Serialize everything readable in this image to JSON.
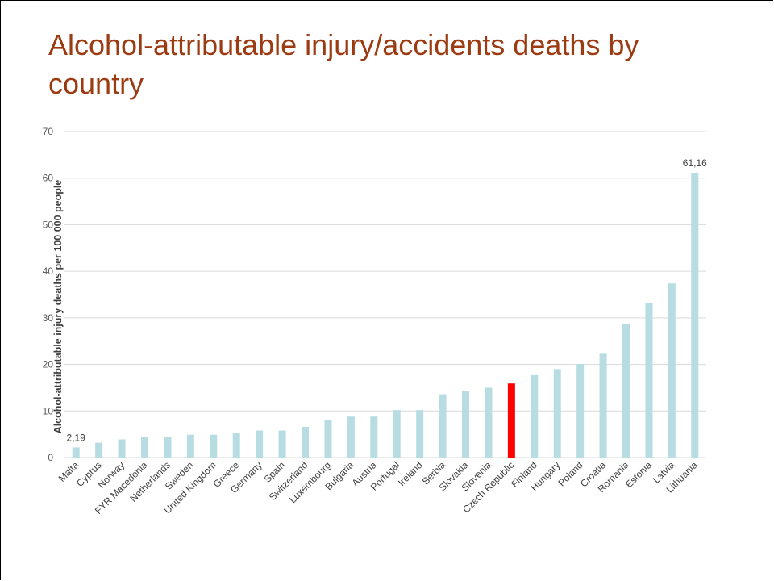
{
  "slide": {
    "title": "Alcohol-attributable injury/accidents deaths by country"
  },
  "chart_data": {
    "type": "bar",
    "title": "Alcohol-attributable injury/accidents deaths by country",
    "xlabel": "",
    "ylabel": "Alcohol-attributable injury deaths per 100 000 people",
    "ylim": [
      0,
      70
    ],
    "yticks": [
      0,
      10,
      20,
      30,
      40,
      50,
      60,
      70
    ],
    "grid": true,
    "legend": "none",
    "colors": {
      "default": "#b7dde2",
      "highlight": "#ff0000",
      "grid": "#d9d9d9"
    },
    "highlight_category": "Czech Republic",
    "categories": [
      "Malta",
      "Cyprus",
      "Norway",
      "FYR Macedonia",
      "Netherlands",
      "Sweden",
      "United Kingdom",
      "Greece",
      "Germany",
      "Spain",
      "Switzerland",
      "Luxembourg",
      "Bulgaria",
      "Austria",
      "Portugal",
      "Ireland",
      "Serbia",
      "Slovakia",
      "Slovenia",
      "Czech Republic",
      "Finland",
      "Hungary",
      "Poland",
      "Croatia",
      "Romania",
      "Estonia",
      "Latvia",
      "Lithuania"
    ],
    "values": [
      2.19,
      3.2,
      3.9,
      4.4,
      4.4,
      4.9,
      4.9,
      5.3,
      5.8,
      5.8,
      6.6,
      8.1,
      8.8,
      8.8,
      10.2,
      10.2,
      13.6,
      14.2,
      15.0,
      15.9,
      17.7,
      19.0,
      20.1,
      22.3,
      28.6,
      33.2,
      37.4,
      61.16
    ],
    "data_labels": [
      {
        "category": "Malta",
        "text": "2,19"
      },
      {
        "category": "Lithuania",
        "text": "61,16"
      }
    ]
  }
}
